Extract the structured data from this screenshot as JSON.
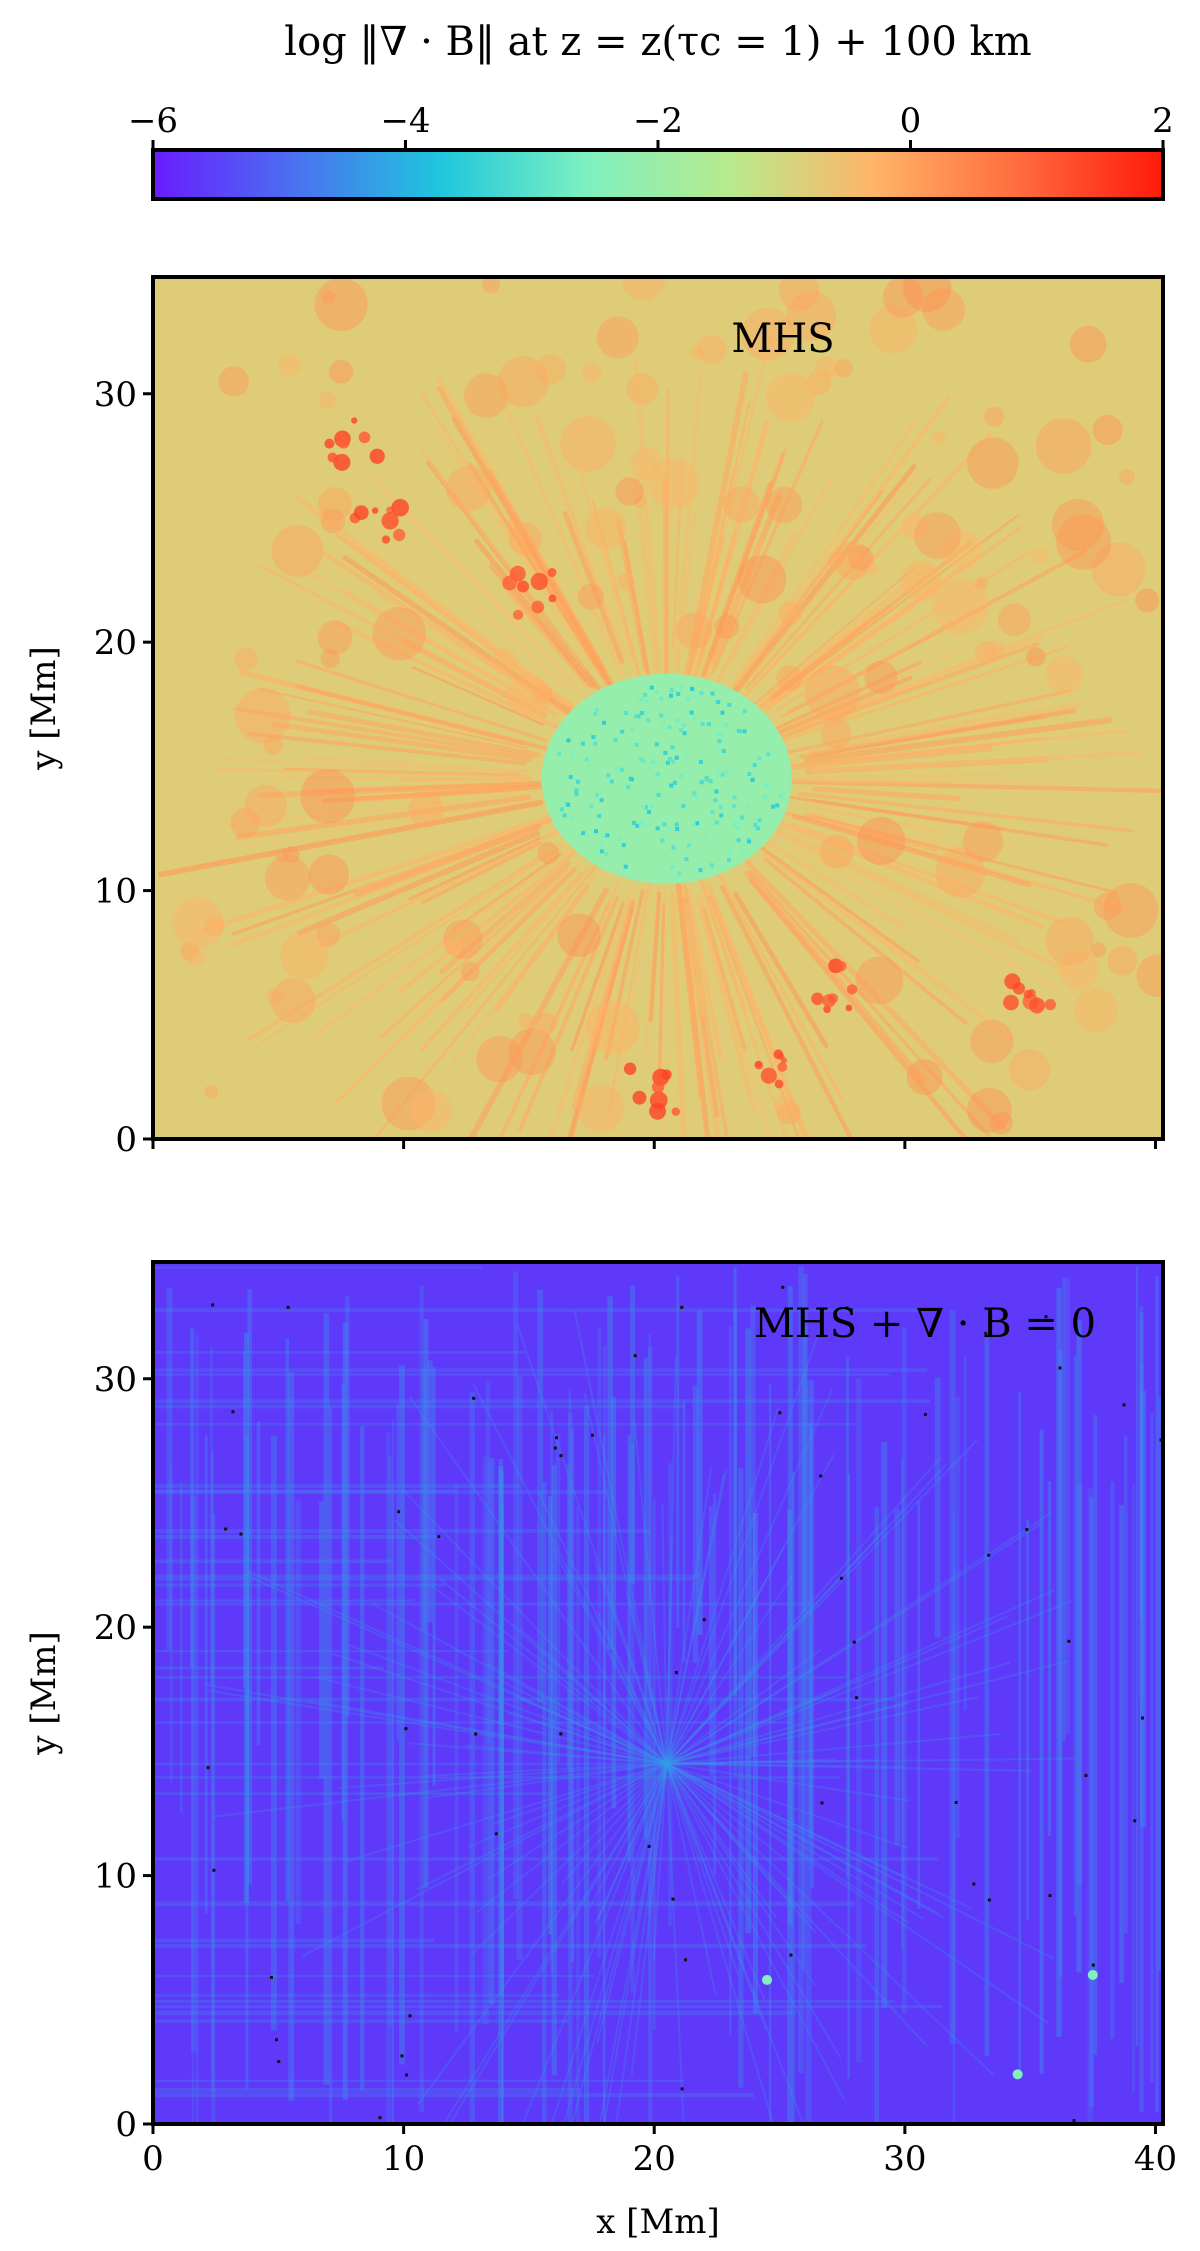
{
  "figure": {
    "colorbar": {
      "label": "log ‖∇ · B‖ at z = z(τc = 1) + 100 km",
      "range": [
        -6,
        2
      ],
      "ticks": [
        -6,
        -4,
        -2,
        0,
        2
      ],
      "tick_labels": [
        "−6",
        "−4",
        "−2",
        "0",
        "2"
      ],
      "colormap": "rainbow",
      "color_stops": [
        "#6a1bff",
        "#4a72f0",
        "#1fc7dd",
        "#7df0c0",
        "#b8ea8c",
        "#ffb468",
        "#ff6b3e",
        "#ff1a0a"
      ]
    },
    "xlabel": "x [Mm]",
    "ylabel": "y [Mm]"
  },
  "chart_data": [
    {
      "type": "heatmap",
      "annotation": "MHS",
      "xlabel": "",
      "ylabel": "y [Mm]",
      "xlim": [
        0,
        40.3
      ],
      "ylim": [
        0,
        34.7
      ],
      "x_ticks": [
        0,
        10,
        20,
        30,
        40
      ],
      "y_ticks": [
        0,
        10,
        20,
        30
      ],
      "y_tick_labels": [
        "0",
        "10",
        "20",
        "30"
      ],
      "value_range": [
        -6,
        2
      ],
      "background_level": -0.8,
      "features": [
        {
          "kind": "umbra",
          "center": [
            20.5,
            14.5
          ],
          "value": -3.0
        },
        {
          "kind": "penumbral-filaments",
          "center": [
            20.5,
            14.5
          ],
          "value": -0.2
        },
        {
          "kind": "strong-patches",
          "value": 1.0
        }
      ],
      "background_color": "#8fe7b0"
    },
    {
      "type": "heatmap",
      "annotation": "MHS + ∇ · B = 0",
      "xlabel": "x [Mm]",
      "ylabel": "y [Mm]",
      "xlim": [
        0,
        40.3
      ],
      "ylim": [
        0,
        34.7
      ],
      "x_ticks": [
        0,
        10,
        20,
        30,
        40
      ],
      "x_tick_labels": [
        "0",
        "10",
        "20",
        "30",
        "40"
      ],
      "y_ticks": [
        0,
        10,
        20,
        30
      ],
      "y_tick_labels": [
        "0",
        "10",
        "20",
        "30"
      ],
      "value_range": [
        -6,
        2
      ],
      "background_level": -5.6,
      "features": [
        {
          "kind": "streaks",
          "value": -4.5
        },
        {
          "kind": "hot-spots",
          "value": -2.5
        }
      ],
      "background_color": "#6a2cf5"
    }
  ]
}
